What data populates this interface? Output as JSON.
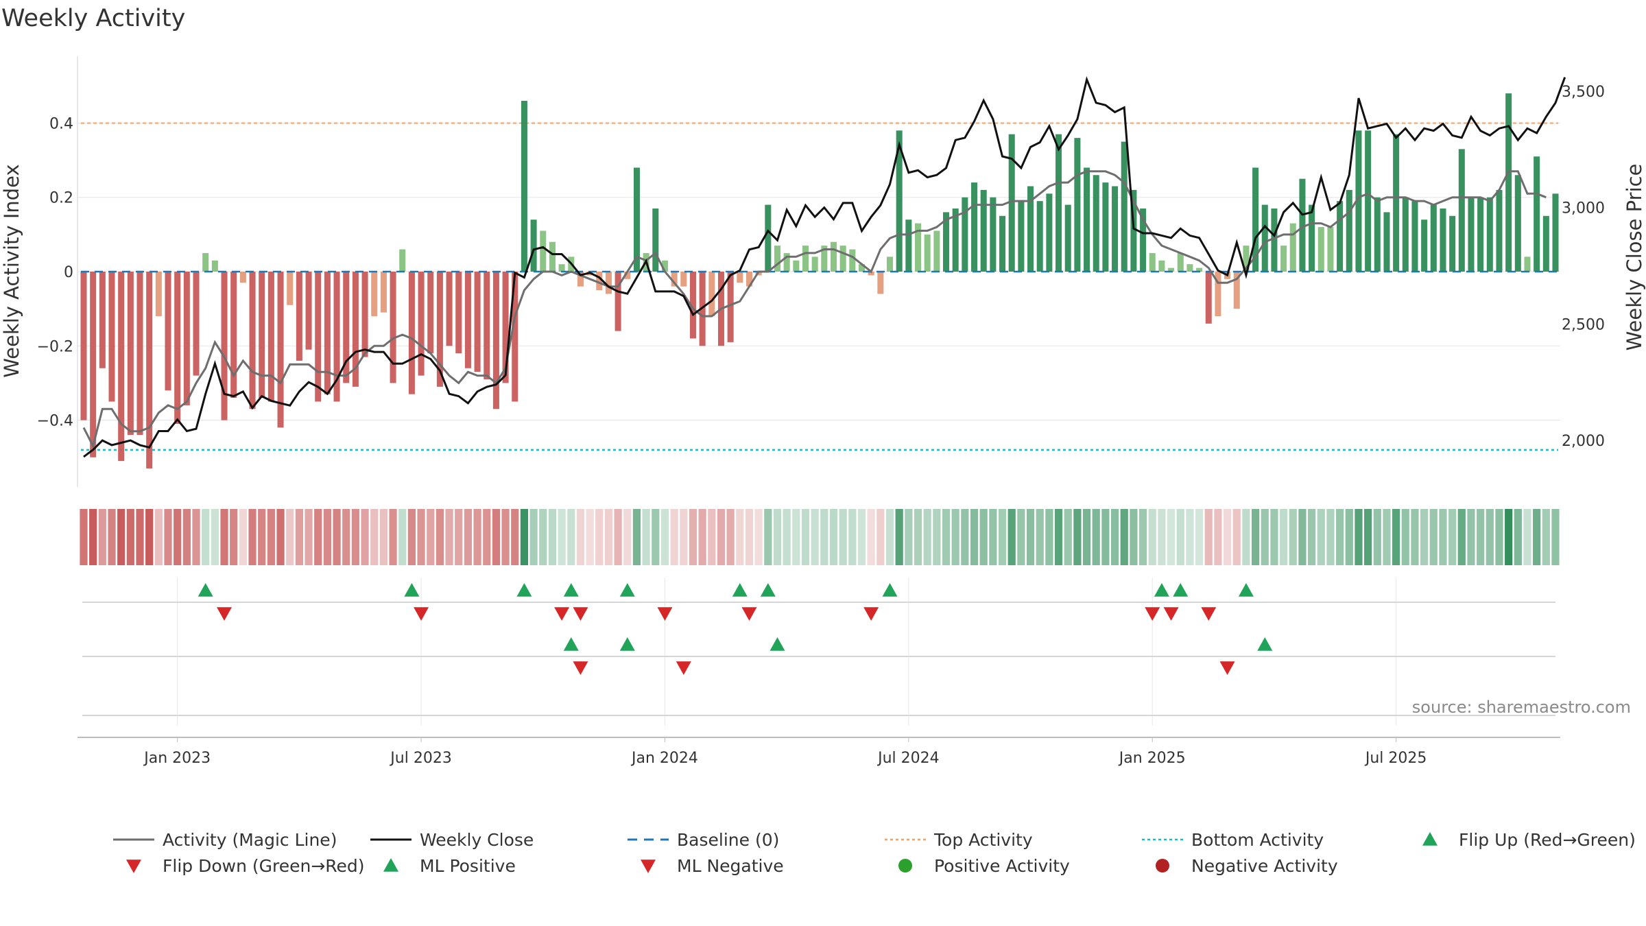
{
  "chart_data": {
    "type": "bar",
    "title": "Weekly Activity",
    "ylabel": "Weekly Activity Index",
    "y2label": "Weekly Close Price",
    "ylim": [
      -0.58,
      0.58
    ],
    "y2lim": [
      1800,
      3650
    ],
    "yticks": [
      {
        "v": -0.4,
        "label": "−0.4"
      },
      {
        "v": -0.2,
        "label": "−0.2"
      },
      {
        "v": 0,
        "label": "0"
      },
      {
        "v": 0.2,
        "label": "0.2"
      },
      {
        "v": 0.4,
        "label": "0.4"
      }
    ],
    "y2ticks": [
      {
        "v": 2000,
        "label": "2,000"
      },
      {
        "v": 2500,
        "label": "2,500"
      },
      {
        "v": 3000,
        "label": "3,000"
      },
      {
        "v": 3500,
        "label": "3,500"
      }
    ],
    "xticks": [
      {
        "i": 10,
        "label": "Jan 2023"
      },
      {
        "i": 36,
        "label": "Jul 2023"
      },
      {
        "i": 62,
        "label": "Jan 2024"
      },
      {
        "i": 88,
        "label": "Jul 2024"
      },
      {
        "i": 114,
        "label": "Jan 2025"
      },
      {
        "i": 140,
        "label": "Jul 2025"
      }
    ],
    "top_activity": 0.4,
    "bottom_activity": -0.48,
    "baseline": 0,
    "activity": [
      -0.4,
      -0.5,
      -0.26,
      -0.35,
      -0.51,
      -0.44,
      -0.44,
      -0.53,
      -0.12,
      -0.32,
      -0.41,
      -0.36,
      -0.28,
      0.05,
      0.03,
      -0.4,
      -0.34,
      -0.03,
      -0.37,
      -0.34,
      -0.35,
      -0.42,
      -0.09,
      -0.24,
      -0.21,
      -0.35,
      -0.33,
      -0.35,
      -0.3,
      -0.31,
      -0.23,
      -0.12,
      -0.11,
      -0.3,
      0.06,
      -0.33,
      -0.28,
      -0.22,
      -0.31,
      -0.2,
      -0.22,
      -0.26,
      -0.27,
      -0.29,
      -0.37,
      -0.3,
      -0.35,
      0.46,
      0.14,
      0.11,
      0.08,
      0.02,
      0.04,
      -0.04,
      -0.01,
      -0.05,
      -0.06,
      -0.16,
      -0.02,
      0.28,
      0.05,
      0.17,
      0.03,
      -0.04,
      -0.04,
      -0.18,
      -0.2,
      -0.12,
      -0.2,
      -0.19,
      -0.03,
      -0.04,
      -0.01,
      0.18,
      0.07,
      0.05,
      0.03,
      0.07,
      0.04,
      0.07,
      0.08,
      0.07,
      0.06,
      0.02,
      -0.01,
      -0.06,
      0.04,
      0.38,
      0.14,
      0.13,
      0.1,
      0.11,
      0.16,
      0.17,
      0.2,
      0.24,
      0.22,
      0.2,
      0.15,
      0.37,
      0.19,
      0.23,
      0.19,
      0.21,
      0.37,
      0.18,
      0.36,
      0.28,
      0.26,
      0.24,
      0.23,
      0.35,
      0.22,
      0.17,
      0.05,
      0.03,
      0.01,
      0.05,
      0.02,
      0.01,
      -0.14,
      -0.12,
      -0.02,
      -0.1,
      0.07,
      0.28,
      0.18,
      0.17,
      0.07,
      0.13,
      0.25,
      0.18,
      0.12,
      0.12,
      0.19,
      0.22,
      0.38,
      0.38,
      0.2,
      0.16,
      0.37,
      0.2,
      0.19,
      0.14,
      0.18,
      0.17,
      0.15,
      0.33,
      0.2,
      0.2,
      0.2,
      0.22,
      0.48,
      0.26,
      0.04,
      0.31,
      0.15,
      0.21
    ],
    "magic_line": [
      -0.42,
      -0.47,
      -0.37,
      -0.37,
      -0.41,
      -0.43,
      -0.43,
      -0.42,
      -0.38,
      -0.36,
      -0.37,
      -0.35,
      -0.3,
      -0.26,
      -0.19,
      -0.23,
      -0.28,
      -0.24,
      -0.27,
      -0.28,
      -0.28,
      -0.3,
      -0.25,
      -0.25,
      -0.25,
      -0.27,
      -0.27,
      -0.28,
      -0.28,
      -0.26,
      -0.22,
      -0.2,
      -0.2,
      -0.18,
      -0.17,
      -0.18,
      -0.2,
      -0.22,
      -0.25,
      -0.28,
      -0.3,
      -0.27,
      -0.28,
      -0.28,
      -0.3,
      -0.26,
      -0.12,
      -0.05,
      -0.02,
      0.0,
      0.0,
      -0.01,
      0.0,
      -0.01,
      -0.02,
      -0.03,
      -0.04,
      -0.04,
      0.0,
      0.04,
      0.03,
      0.05,
      0.0,
      -0.03,
      -0.06,
      -0.1,
      -0.12,
      -0.12,
      -0.1,
      -0.09,
      -0.08,
      -0.04,
      0.0,
      0.0,
      0.02,
      0.04,
      0.04,
      0.05,
      0.05,
      0.06,
      0.06,
      0.05,
      0.04,
      0.02,
      0.0,
      0.06,
      0.09,
      0.1,
      0.1,
      0.11,
      0.11,
      0.12,
      0.14,
      0.15,
      0.16,
      0.18,
      0.18,
      0.18,
      0.18,
      0.19,
      0.19,
      0.19,
      0.21,
      0.23,
      0.24,
      0.24,
      0.26,
      0.27,
      0.27,
      0.27,
      0.26,
      0.24,
      0.19,
      0.14,
      0.1,
      0.07,
      0.06,
      0.05,
      0.04,
      0.03,
      0.01,
      -0.03,
      -0.03,
      -0.02,
      0.01,
      0.04,
      0.08,
      0.09,
      0.1,
      0.1,
      0.12,
      0.13,
      0.13,
      0.12,
      0.14,
      0.16,
      0.2,
      0.21,
      0.19,
      0.2,
      0.2,
      0.2,
      0.19,
      0.19,
      0.18,
      0.19,
      0.2,
      0.2,
      0.2,
      0.2,
      0.19,
      0.22,
      0.27,
      0.27,
      0.21,
      0.21,
      0.2
    ],
    "weekly_close": [
      1930,
      1960,
      2000,
      1980,
      1990,
      2000,
      1980,
      1970,
      2040,
      2040,
      2090,
      2040,
      2050,
      2200,
      2330,
      2200,
      2190,
      2210,
      2140,
      2190,
      2170,
      2160,
      2150,
      2210,
      2250,
      2230,
      2200,
      2260,
      2340,
      2380,
      2390,
      2380,
      2380,
      2330,
      2330,
      2350,
      2370,
      2350,
      2300,
      2200,
      2190,
      2160,
      2210,
      2230,
      2240,
      2280,
      2720,
      2700,
      2820,
      2830,
      2800,
      2800,
      2760,
      2710,
      2720,
      2700,
      2660,
      2640,
      2630,
      2700,
      2770,
      2640,
      2640,
      2640,
      2620,
      2540,
      2570,
      2600,
      2650,
      2710,
      2730,
      2820,
      2830,
      2900,
      2860,
      2990,
      2920,
      3010,
      2960,
      3000,
      2950,
      3020,
      3020,
      2900,
      2960,
      3010,
      3100,
      3270,
      3150,
      3160,
      3130,
      3140,
      3170,
      3290,
      3300,
      3370,
      3460,
      3380,
      3220,
      3210,
      3170,
      3260,
      3280,
      3350,
      3250,
      3310,
      3380,
      3550,
      3450,
      3440,
      3410,
      3430,
      2910,
      2890,
      2890,
      2880,
      2870,
      2910,
      2880,
      2870,
      2800,
      2730,
      2710,
      2850,
      2710,
      2870,
      2920,
      2880,
      2980,
      3020,
      2970,
      2980,
      3130,
      2990,
      3020,
      3140,
      3470,
      3340,
      3350,
      3360,
      3300,
      3340,
      3290,
      3340,
      3330,
      3360,
      3310,
      3300,
      3390,
      3330,
      3310,
      3340,
      3350,
      3290,
      3340,
      3320,
      3390,
      3450,
      3560
    ]
  },
  "flip_up": [
    13,
    35,
    47,
    52,
    58,
    70,
    73,
    86,
    115,
    117,
    124
  ],
  "flip_down": [
    15,
    36,
    51,
    53,
    62,
    71,
    84,
    114,
    116,
    120
  ],
  "ml_positive": [
    52,
    58,
    74,
    126
  ],
  "ml_negative": [
    53,
    64,
    122
  ],
  "colors": {
    "pos_strong": "#2e8b57",
    "pos_light": "#85c17e",
    "neg_strong": "#c85b5b",
    "neg_light": "#e49a7a",
    "magic": "#6e6e6e",
    "close": "#111111",
    "baseline": "#1f77b4",
    "top": "#f4a261",
    "bottom": "#17becf",
    "flip_up": "#21a45a",
    "flip_down": "#d62728",
    "pos_dot": "#2ca02c",
    "neg_dot": "#b22222"
  },
  "legend": [
    {
      "key": "magic",
      "label": "Activity (Magic Line)",
      "kind": "line"
    },
    {
      "key": "close",
      "label": "Weekly Close",
      "kind": "line"
    },
    {
      "key": "baseline",
      "label": "Baseline (0)",
      "kind": "dash"
    },
    {
      "key": "top",
      "label": "Top Activity",
      "kind": "dot"
    },
    {
      "key": "bottom",
      "label": "Bottom Activity",
      "kind": "dot"
    },
    {
      "key": "flip_up",
      "label": "Flip Up (Red→Green)",
      "kind": "up"
    },
    {
      "key": "flip_down",
      "label": "Flip Down (Green→Red)",
      "kind": "down"
    },
    {
      "key": "flip_up",
      "label": "ML Positive",
      "kind": "up"
    },
    {
      "key": "flip_down",
      "label": "ML Negative",
      "kind": "down"
    },
    {
      "key": "pos_dot",
      "label": "Positive Activity",
      "kind": "circle"
    },
    {
      "key": "neg_dot",
      "label": "Negative Activity",
      "kind": "circle"
    }
  ],
  "source": "source: sharemaestro.com"
}
